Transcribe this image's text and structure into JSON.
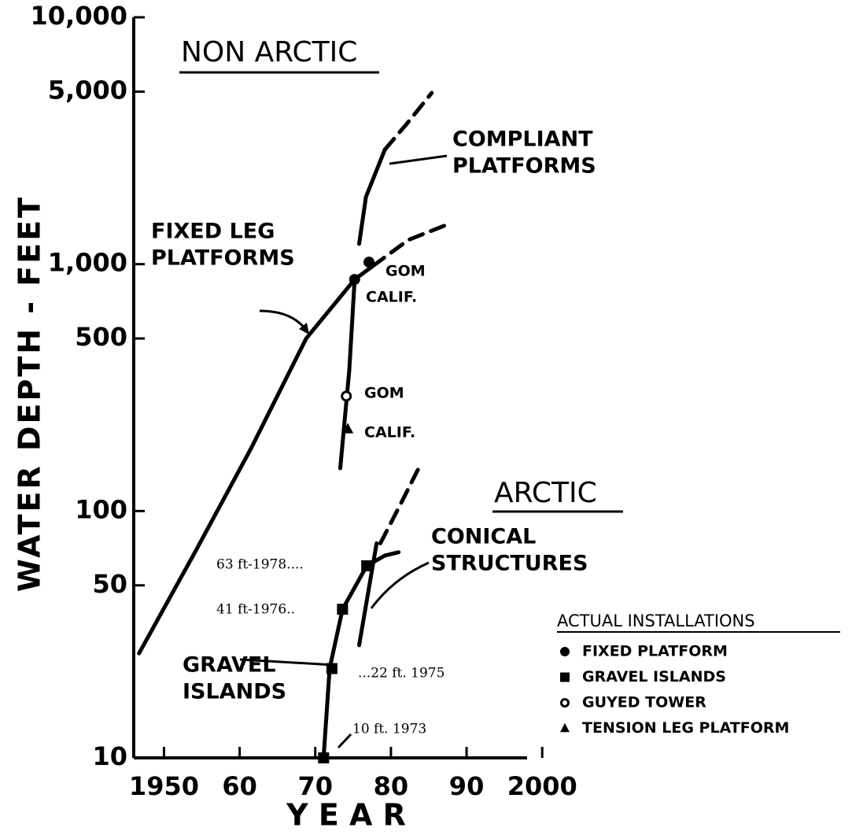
{
  "chart_data": {
    "type": "line",
    "regions": [
      "NON ARCTIC",
      "ARCTIC"
    ],
    "y_label": "WATER DEPTH - FEET",
    "x_label": "Y E A R",
    "log_y": true,
    "xlim": [
      1946,
      1998
    ],
    "ylim": [
      10,
      10000
    ],
    "xticks": [
      {
        "value": 1950,
        "label": "1950"
      },
      {
        "value": 1960,
        "label": "60"
      },
      {
        "value": 1970,
        "label": "70"
      },
      {
        "value": 1980,
        "label": "80"
      },
      {
        "value": 1990,
        "label": "90"
      },
      {
        "value": 2000,
        "label": "2000"
      }
    ],
    "yticks": [
      10,
      50,
      100,
      500,
      {
        "value": 1000,
        "label": "1,000"
      },
      {
        "value": 5000,
        "label": "5,000"
      },
      {
        "value": 10000,
        "label": "10,000"
      }
    ],
    "curves": [
      {
        "dashed": false,
        "x": [
          1946.7,
          1954.2,
          1961.5,
          1968.8,
          1975.2,
          1977.6
        ],
        "values": [
          26.5,
          69,
          179,
          500,
          867,
          982
        ]
      },
      {
        "dashed": true,
        "x": [
          1977.6,
          1982.3,
          1987.5
        ],
        "values": [
          982,
          1253,
          1449
        ]
      },
      {
        "dashed": false,
        "x": [
          1975.8,
          1976.7,
          1979.2
        ],
        "values": [
          1208,
          1874,
          2911
        ]
      },
      {
        "dashed": true,
        "x": [
          1979.2,
          1982.3,
          1985.4
        ],
        "values": [
          2911,
          3767,
          4943
        ]
      },
      {
        "dashed": false,
        "x": [
          1973.3,
          1974.5,
          1975.2
        ],
        "values": [
          149,
          373,
          867
        ]
      },
      {
        "dashed": false,
        "x": [
          1971.1,
          1971.9,
          1973.6,
          1976.8,
          1979.2
        ],
        "values": [
          10,
          23,
          40,
          60,
          66
        ]
      },
      {
        "dashed": true,
        "x": [
          1979.2,
          1981.8
        ],
        "values": [
          66,
          69
        ]
      },
      {
        "dashed": true,
        "x": [
          1978.6,
          1981.3,
          1983.9
        ],
        "values": [
          74,
          107,
          154
        ]
      },
      {
        "dashed": false,
        "x": [
          1975.8,
          1978.1
        ],
        "values": [
          28.6,
          74
        ]
      }
    ],
    "legend_title": "ACTUAL INSTALLATIONS",
    "series": [
      {
        "name": "FIXED PLATFORM",
        "marker": "circle",
        "color": "#000000",
        "x": [
          1975.2,
          1977.1
        ],
        "values": [
          867,
          1019
        ]
      },
      {
        "name": "GRAVEL ISLANDS",
        "marker": "square",
        "color": "#000000",
        "x": [
          1971.1,
          1972.2,
          1973.6,
          1976.8
        ],
        "values": [
          10,
          23,
          40,
          60
        ]
      },
      {
        "name": "GUYED TOWER",
        "marker": "open-circle",
        "color": "#000000",
        "x": [
          1974.1
        ],
        "values": [
          292
        ]
      },
      {
        "name": "TENSION LEG PLATFORM",
        "marker": "triangle",
        "color": "#000000",
        "x": [
          1974.3
        ],
        "values": [
          215
        ]
      }
    ],
    "annotations": [
      [
        "COMPLIANT",
        "PLATFORMS"
      ],
      [
        "FIXED LEG",
        "PLATFORMS"
      ],
      [
        "GOM"
      ],
      [
        "CALIF."
      ],
      [
        "GOM"
      ],
      [
        "CALIF."
      ],
      [
        "CONICAL",
        "STRUCTURES"
      ],
      [
        "GRAVEL",
        "ISLANDS"
      ],
      [
        "63 ft-1978...."
      ],
      [
        "41 ft-1976.."
      ],
      [
        "...22 ft. 1975"
      ],
      [
        "10 ft. 1973"
      ]
    ]
  }
}
